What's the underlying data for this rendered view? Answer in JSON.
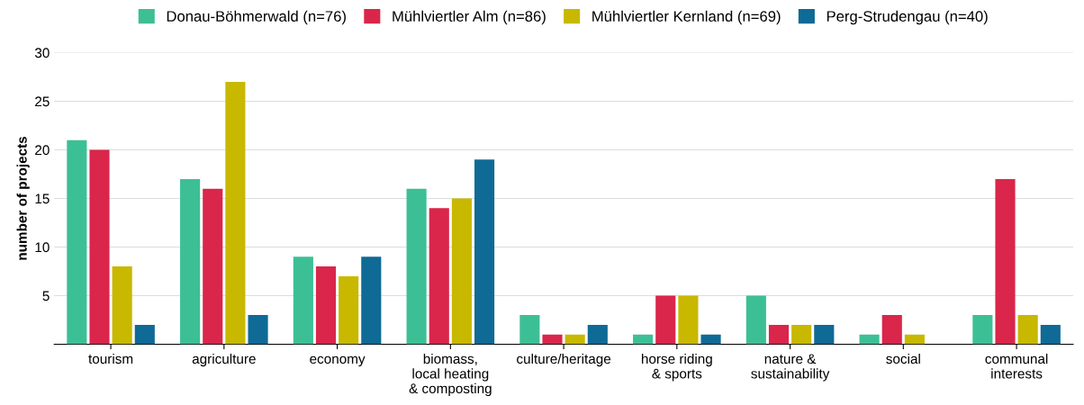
{
  "chart_data": {
    "type": "bar",
    "ylabel": "number of projects",
    "categories": [
      "tourism",
      "agriculture",
      "economy",
      "biomass,\nlocal heating\n& composting",
      "culture/heritage",
      "horse riding\n& sports",
      "nature &\nsustainability",
      "social",
      "communal\ninterests"
    ],
    "series": [
      {
        "name": "Donau-Böhmerwald (n=76)",
        "color": "#3dbf96",
        "values": [
          21,
          17,
          9,
          16,
          3,
          1,
          5,
          1,
          3
        ]
      },
      {
        "name": "Mühlviertler Alm (n=86)",
        "color": "#d9264a",
        "values": [
          20,
          16,
          8,
          14,
          1,
          5,
          2,
          3,
          17
        ]
      },
      {
        "name": "Mühlviertler Kernland (n=69)",
        "color": "#c8b800",
        "values": [
          8,
          27,
          7,
          15,
          1,
          5,
          2,
          1,
          3
        ]
      },
      {
        "name": "Perg-Strudengau (n=40)",
        "color": "#0f6a96",
        "values": [
          2,
          3,
          9,
          19,
          2,
          1,
          2,
          null,
          2
        ]
      }
    ],
    "ylim": [
      0,
      30
    ],
    "yticks": [
      5,
      10,
      15,
      20,
      25,
      30
    ],
    "grid": "y",
    "legend": "top"
  }
}
